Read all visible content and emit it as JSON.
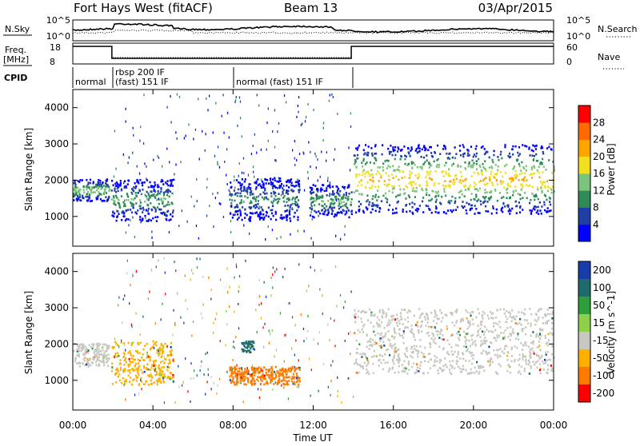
{
  "header": {
    "radar": "Fort Hays West (fitACF)",
    "beam": "Beam 13",
    "date": "03/Apr/2015"
  },
  "top_panels": {
    "nsky_label": "N.Sky",
    "nsky_ticks": [
      "10^5",
      "10^0"
    ],
    "nsearch_label": "N.Search",
    "nsearch_ticks": [
      "10^5",
      "10^0"
    ],
    "freq_label": "Freq.",
    "freq_unit": "[MHz]",
    "freq_ticks": [
      "18",
      "8"
    ],
    "nave_label": "Nave",
    "nave_ticks": [
      "60",
      "0"
    ],
    "cpid_label": "CPID",
    "cpid_segments": [
      "normal",
      "rbsp 200 IF",
      "(fast) 151 IF",
      "normal (fast) 151 IF"
    ]
  },
  "colors": {
    "power_scale": [
      "#0000ff",
      "#1f3fa6",
      "#2e8b57",
      "#7cc47c",
      "#f0e020",
      "#ffa500",
      "#ff6a00",
      "#ff0000"
    ],
    "velocity_scale": [
      "#1a3ca8",
      "#1e6b6b",
      "#2e9e3a",
      "#8fd04a",
      "#c8c8c0",
      "#ffb000",
      "#ff7a00",
      "#ff0000"
    ]
  },
  "chart_data": [
    {
      "type": "heatmap",
      "title": "",
      "xlabel": "",
      "ylabel": "Slant Range [km]",
      "xlim": [
        "00:00",
        "24:00"
      ],
      "ylim": [
        180,
        4500
      ],
      "y_ticks": [
        "1000",
        "2000",
        "3000",
        "4000"
      ],
      "colorbar_label": "Power [dB]",
      "colorbar_ticks": [
        "4",
        "8",
        "12",
        "16",
        "20",
        "24",
        "28"
      ],
      "features": [
        {
          "x": [
            0,
            1.8
          ],
          "range_km": [
            1450,
            2050
          ],
          "peak_power_db": 16
        },
        {
          "x": [
            1.9,
            5.0
          ],
          "range_km": [
            900,
            2050
          ],
          "peak_power_db": 14
        },
        {
          "x": [
            7.8,
            11.3
          ],
          "range_km": [
            900,
            2100
          ],
          "peak_power_db": 12
        },
        {
          "x": [
            11.8,
            13.9
          ],
          "range_km": [
            1000,
            1900
          ],
          "peak_power_db": 14
        },
        {
          "x": [
            14.0,
            24.0
          ],
          "range_km": [
            1100,
            3000
          ],
          "peak_power_db": 20
        }
      ]
    },
    {
      "type": "heatmap",
      "title": "",
      "xlabel": "Time UT",
      "ylabel": "Slant Range [km]",
      "xlim": [
        "00:00",
        "24:00"
      ],
      "ylim": [
        180,
        4500
      ],
      "x_ticks": [
        "00:00",
        "04:00",
        "08:00",
        "12:00",
        "16:00",
        "20:00",
        "00:00"
      ],
      "y_ticks": [
        "1000",
        "2000",
        "3000",
        "4000"
      ],
      "colorbar_label": "Velocity [m s^-1]",
      "colorbar_ticks": [
        "200",
        "100",
        "50",
        "15",
        "-15",
        "-50",
        "-100",
        "-200"
      ],
      "features": [
        {
          "x": [
            0,
            1.8
          ],
          "range_km": [
            1400,
            2050
          ],
          "velocity_ms": 0
        },
        {
          "x": [
            1.9,
            5.0
          ],
          "range_km": [
            900,
            2100
          ],
          "velocity_ms": -30
        },
        {
          "x": [
            7.8,
            11.3
          ],
          "range_km": [
            900,
            1400
          ],
          "velocity_ms": -60
        },
        {
          "x": [
            8.4,
            9.0
          ],
          "range_km": [
            1800,
            2100
          ],
          "velocity_ms": 150
        },
        {
          "x": [
            14.0,
            24.0
          ],
          "range_km": [
            1200,
            3000
          ],
          "velocity_ms": 0
        }
      ]
    }
  ]
}
